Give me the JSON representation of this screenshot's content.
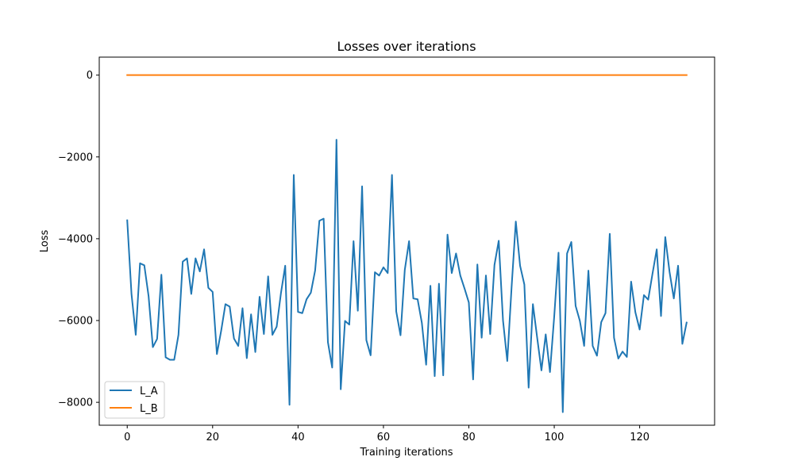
{
  "chart_data": {
    "type": "line",
    "title": "Losses over iterations",
    "xlabel": "Training iterations",
    "ylabel": "Loss",
    "xlim": [
      -6.55,
      137.55
    ],
    "ylim": [
      -8560,
      440
    ],
    "xticks": [
      0,
      20,
      40,
      60,
      80,
      100,
      120
    ],
    "yticks": [
      0,
      -2000,
      -4000,
      -6000,
      -8000
    ],
    "ytick_labels": [
      "0",
      "−2000",
      "−4000",
      "−6000",
      "−8000"
    ],
    "grid": false,
    "legend": "bottom-left",
    "colors": {
      "L_A": "#1f77b4",
      "L_B": "#ff7f0e"
    },
    "series": [
      {
        "name": "L_A",
        "x_start": 0,
        "x_step": 1,
        "values": [
          -3550,
          -5350,
          -6350,
          -4600,
          -4650,
          -5400,
          -6650,
          -6450,
          -4880,
          -6900,
          -6960,
          -6960,
          -6350,
          -4560,
          -4480,
          -5350,
          -4480,
          -4800,
          -4260,
          -5200,
          -5300,
          -6820,
          -6250,
          -5600,
          -5660,
          -6440,
          -6620,
          -5700,
          -6920,
          -5850,
          -6770,
          -5420,
          -6330,
          -4920,
          -6350,
          -6150,
          -5330,
          -4660,
          -8060,
          -2440,
          -5790,
          -5820,
          -5480,
          -5320,
          -4780,
          -3560,
          -3510,
          -6530,
          -7150,
          -1580,
          -7680,
          -6010,
          -6100,
          -4060,
          -5760,
          -2720,
          -6480,
          -6850,
          -4820,
          -4900,
          -4700,
          -4840,
          -2440,
          -5780,
          -6360,
          -4760,
          -4060,
          -5460,
          -5480,
          -6060,
          -7080,
          -5150,
          -7360,
          -5100,
          -7340,
          -3900,
          -4840,
          -4360,
          -4900,
          -5220,
          -5560,
          -7440,
          -4630,
          -6420,
          -4900,
          -6330,
          -4640,
          -4050,
          -6000,
          -6990,
          -5200,
          -3580,
          -4660,
          -5120,
          -7640,
          -5600,
          -6420,
          -7220,
          -6340,
          -7260,
          -5890,
          -4340,
          -8240,
          -4360,
          -4080,
          -5640,
          -6010,
          -6620,
          -4780,
          -6620,
          -6860,
          -6040,
          -5820,
          -3880,
          -6420,
          -6930,
          -6760,
          -6890,
          -5050,
          -5800,
          -6220,
          -5380,
          -5490,
          -4860,
          -4260,
          -5890,
          -3960,
          -4810,
          -5460,
          -4660,
          -6570,
          -6050
        ]
      },
      {
        "name": "L_B",
        "x_start": 0,
        "x_step": 1,
        "values_constant": 0,
        "count": 132
      }
    ]
  }
}
